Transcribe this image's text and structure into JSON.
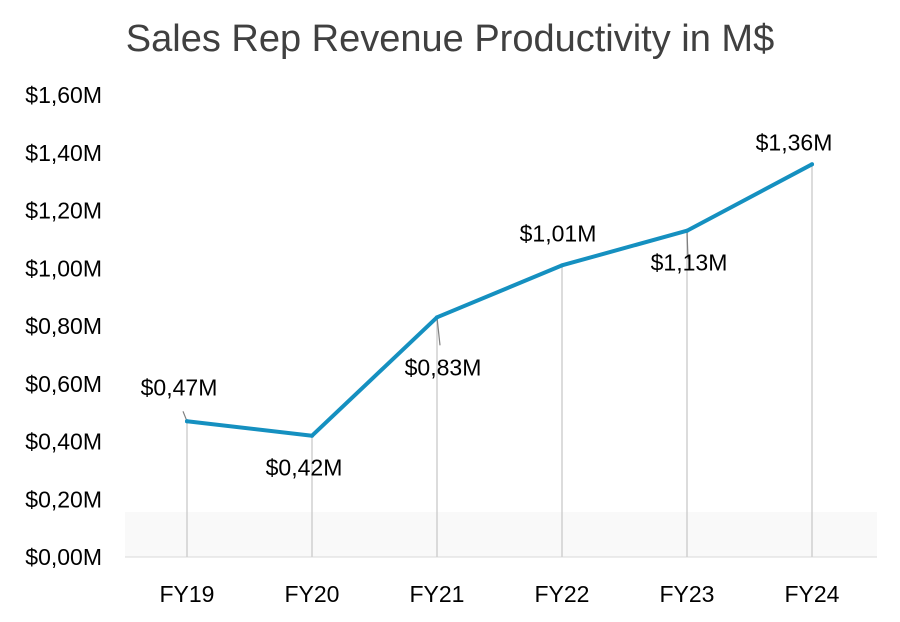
{
  "chart_data": {
    "type": "line",
    "title": "Sales Rep Revenue Productivity in M$",
    "categories": [
      "FY19",
      "FY20",
      "FY21",
      "FY22",
      "FY23",
      "FY24"
    ],
    "values": [
      0.47,
      0.42,
      0.83,
      1.01,
      1.13,
      1.36
    ],
    "data_labels": [
      "$0,47M",
      "$0,42M",
      "$0,83M",
      "$1,01M",
      "$1,13M",
      "$1,36M"
    ],
    "yticks": [
      "$0,00M",
      "$0,20M",
      "$0,40M",
      "$0,60M",
      "$0,80M",
      "$1,00M",
      "$1,20M",
      "$1,40M",
      "$1,60M"
    ],
    "ylim": [
      0,
      1.6
    ],
    "line_color": "#1590C0",
    "drop_line_color": "#D0D0D0",
    "grid": false,
    "legend": "none"
  }
}
